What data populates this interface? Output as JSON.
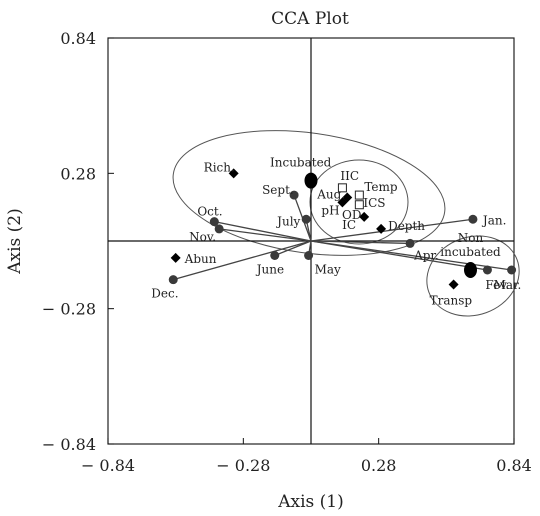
{
  "chart_data": {
    "type": "scatter",
    "title": "CCA Plot",
    "xlabel": "Axis (1)",
    "ylabel": "Axis (2)",
    "xlim": [
      -0.84,
      0.84
    ],
    "ylim": [
      -0.84,
      0.84
    ],
    "x_ticks": [
      "− 0.84",
      "− 0.28",
      "0.28",
      "0.84"
    ],
    "y_ticks": [
      "0.84",
      "0.28",
      "− 0.28",
      "− 0.84"
    ],
    "tick_values": [
      -0.84,
      -0.28,
      0.28,
      0.84
    ],
    "grid": false,
    "series": [
      {
        "name": "months",
        "marker": "circle",
        "points": [
          {
            "label": "Sept.",
            "x": -0.07,
            "y": 0.19
          },
          {
            "label": "July",
            "x": -0.02,
            "y": 0.09
          },
          {
            "label": "Oct.",
            "x": -0.4,
            "y": 0.08
          },
          {
            "label": "Nov.",
            "x": -0.38,
            "y": 0.05
          },
          {
            "label": "June",
            "x": -0.15,
            "y": -0.06
          },
          {
            "label": "May",
            "x": -0.01,
            "y": -0.06
          },
          {
            "label": "Dec.",
            "x": -0.57,
            "y": -0.16
          },
          {
            "label": "Apr.",
            "x": 0.41,
            "y": -0.01
          },
          {
            "label": "Jan.",
            "x": 0.67,
            "y": 0.09
          },
          {
            "label": "Fev.",
            "x": 0.73,
            "y": -0.12
          },
          {
            "label": "Mar.",
            "x": 0.83,
            "y": -0.12
          }
        ]
      },
      {
        "name": "incubation",
        "marker": "large-circle",
        "points": [
          {
            "label": "Incubated",
            "x": 0.0,
            "y": 0.25
          },
          {
            "label": "Non\nincubated",
            "x": 0.66,
            "y": -0.12
          }
        ]
      },
      {
        "name": "environment",
        "marker": "diamond",
        "points": [
          {
            "label": "Rich.",
            "x": -0.32,
            "y": 0.28
          },
          {
            "label": "Aug.",
            "x": 0.15,
            "y": 0.18
          },
          {
            "label": "pH",
            "x": 0.13,
            "y": 0.16
          },
          {
            "label": "IC",
            "x": 0.22,
            "y": 0.1
          },
          {
            "label": "Depth",
            "x": 0.29,
            "y": 0.05
          },
          {
            "label": "Abun",
            "x": -0.56,
            "y": -0.07
          },
          {
            "label": "Transp",
            "x": 0.59,
            "y": -0.18
          }
        ]
      },
      {
        "name": "ciliates",
        "marker": "square",
        "points": [
          {
            "label": "IIC",
            "x": 0.13,
            "y": 0.22
          },
          {
            "label": "Temp",
            "x": 0.2,
            "y": 0.19
          },
          {
            "label": "ICS",
            "x": 0.2,
            "y": 0.15
          }
        ]
      }
    ],
    "extra_labels": [
      "OD"
    ],
    "vectors_from_origin": [
      "Sept.",
      "July",
      "Oct.",
      "Nov.",
      "June",
      "May",
      "Dec.",
      "Apr.",
      "Jan.",
      "Fev.",
      "Mar."
    ]
  }
}
